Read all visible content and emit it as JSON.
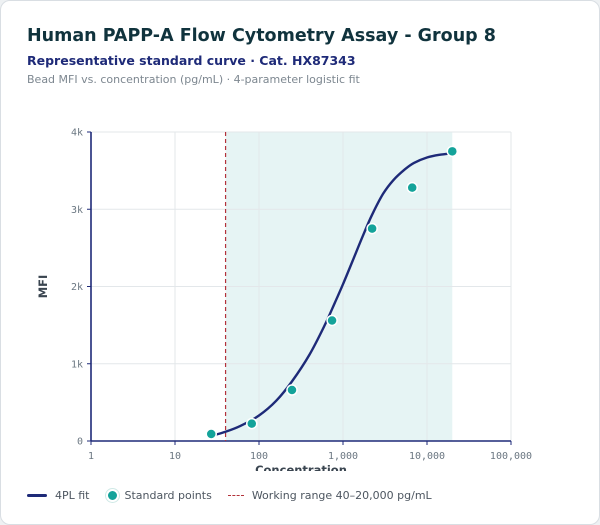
{
  "header": {
    "title": "Human PAPP-A Flow Cytometry Assay - Group 8",
    "subtitle": "Representative standard curve · Cat. HX87343",
    "note": "Bead MFI vs. concentration (pg/mL) · 4-parameter logistic fit"
  },
  "chart_data": {
    "type": "scatter",
    "xlabel": "Concentration",
    "ylabel": "MFI",
    "x_scale": "log",
    "xlim": [
      1,
      100000
    ],
    "ylim": [
      0,
      4000
    ],
    "x_ticks": [
      1,
      10,
      100,
      1000,
      10000,
      100000
    ],
    "x_tick_labels": [
      "1",
      "10",
      "100",
      "1,000",
      "10,000",
      "100,000"
    ],
    "y_ticks": [
      0,
      1000,
      2000,
      3000,
      4000
    ],
    "y_tick_labels": [
      "0",
      "1k",
      "2k",
      "3k",
      "4k"
    ],
    "grid": true,
    "legend_position": "bottom",
    "working_range": {
      "low": 40,
      "high": 20000
    },
    "lloq_line": 40,
    "series": [
      {
        "name": "Standard points",
        "kind": "points",
        "color": "#14a39a",
        "x": [
          27,
          82,
          247,
          741,
          2222,
          6667,
          20000
        ],
        "y": [
          90,
          225,
          660,
          1560,
          2750,
          3280,
          3750
        ]
      },
      {
        "name": "4PL fit",
        "kind": "curve",
        "color": "#1e2a78",
        "x": [
          27,
          40,
          60,
          100,
          160,
          250,
          400,
          600,
          800,
          1000,
          1300,
          1700,
          2200,
          3000,
          4000,
          5500,
          7000,
          10000,
          14000,
          20000
        ],
        "y": [
          65,
          120,
          195,
          330,
          520,
          780,
          1120,
          1490,
          1790,
          2030,
          2330,
          2640,
          2920,
          3200,
          3380,
          3520,
          3600,
          3670,
          3705,
          3725
        ]
      }
    ]
  },
  "legend": {
    "fit": "4PL fit",
    "points": "Standard points",
    "range": "Working range 40–20,000 pg/mL"
  },
  "colors": {
    "curve": "#1e2a78",
    "points": "#14a39a",
    "range_band": "#e6f4f4",
    "lloq": "#b3323a"
  }
}
